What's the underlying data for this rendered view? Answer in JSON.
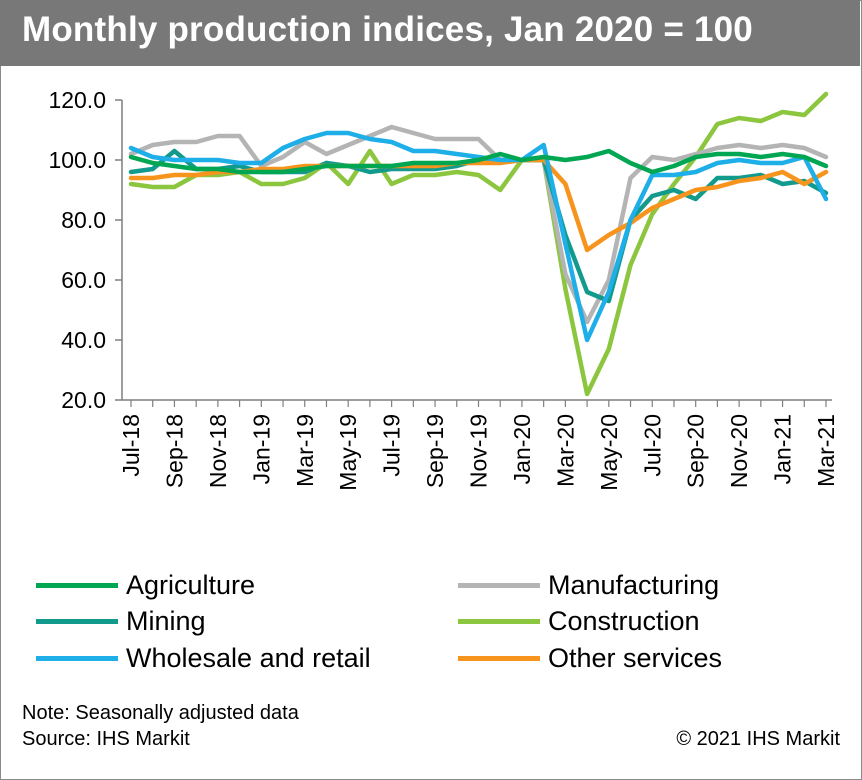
{
  "title": "Monthly production indices, Jan 2020 = 100",
  "footer": {
    "note": "Note: Seasonally adjusted data",
    "source": "Source: IHS Markit",
    "copyright": "© 2021 IHS Markit"
  },
  "chart_data": {
    "type": "line",
    "title": "Monthly production indices, Jan 2020 = 100",
    "xlabel": "",
    "ylabel": "",
    "ylim": [
      20,
      120
    ],
    "yticks": [
      "20.0",
      "40.0",
      "60.0",
      "80.0",
      "100.0",
      "120.0"
    ],
    "grid": false,
    "legend": "bottom",
    "x": [
      "Jul-18",
      "Aug-18",
      "Sep-18",
      "Oct-18",
      "Nov-18",
      "Dec-18",
      "Jan-19",
      "Feb-19",
      "Mar-19",
      "Apr-19",
      "May-19",
      "Jun-19",
      "Jul-19",
      "Aug-19",
      "Sep-19",
      "Oct-19",
      "Nov-19",
      "Dec-19",
      "Jan-20",
      "Feb-20",
      "Mar-20",
      "Apr-20",
      "May-20",
      "Jun-20",
      "Jul-20",
      "Aug-20",
      "Sep-20",
      "Oct-20",
      "Nov-20",
      "Dec-20",
      "Jan-21",
      "Feb-21",
      "Mar-21"
    ],
    "xtick_labels": [
      "Jul-18",
      "Sep-18",
      "Nov-18",
      "Jan-19",
      "Mar-19",
      "May-19",
      "Jul-19",
      "Sep-19",
      "Nov-19",
      "Jan-20",
      "Mar-20",
      "May-20",
      "Jul-20",
      "Sep-20",
      "Nov-20",
      "Jan-21",
      "Mar-21"
    ],
    "series": [
      {
        "name": "Agriculture",
        "color": "#00a651",
        "values": [
          101,
          99,
          98,
          97,
          97,
          96,
          96,
          96,
          97,
          98,
          98,
          98,
          98,
          99,
          99,
          99,
          100,
          102,
          100,
          101,
          100,
          101,
          103,
          99,
          96,
          98,
          101,
          102,
          102,
          101,
          102,
          101,
          98
        ]
      },
      {
        "name": "Manufacturing",
        "color": "#b4b4b4",
        "values": [
          102,
          105,
          106,
          106,
          108,
          108,
          98,
          101,
          106,
          102,
          105,
          108,
          111,
          109,
          107,
          107,
          107,
          100,
          100,
          100,
          62,
          46,
          60,
          94,
          101,
          100,
          102,
          104,
          105,
          104,
          105,
          104,
          101
        ]
      },
      {
        "name": "Mining",
        "color": "#129a8c",
        "values": [
          96,
          97,
          103,
          97,
          97,
          98,
          96,
          96,
          96,
          99,
          98,
          96,
          97,
          97,
          97,
          98,
          100,
          100,
          100,
          100,
          75,
          56,
          53,
          80,
          88,
          90,
          87,
          94,
          94,
          95,
          92,
          93,
          89
        ]
      },
      {
        "name": "Construction",
        "color": "#8cc63f",
        "values": [
          92,
          91,
          91,
          95,
          95,
          96,
          92,
          92,
          94,
          99,
          92,
          103,
          92,
          95,
          95,
          96,
          95,
          90,
          100,
          100,
          57,
          22,
          37,
          65,
          82,
          92,
          101,
          112,
          114,
          113,
          116,
          115,
          122
        ]
      },
      {
        "name": "Wholesale and retail",
        "color": "#1eaee8",
        "values": [
          104,
          101,
          100,
          100,
          100,
          99,
          99,
          104,
          107,
          109,
          109,
          107,
          106,
          103,
          103,
          102,
          101,
          100,
          100,
          105,
          72,
          40,
          56,
          80,
          95,
          95,
          96,
          99,
          100,
          99,
          99,
          101,
          87
        ]
      },
      {
        "name": "Other services",
        "color": "#f7941d",
        "values": [
          94,
          94,
          95,
          95,
          96,
          96,
          97,
          97,
          98,
          98,
          98,
          98,
          98,
          98,
          98,
          99,
          99,
          99,
          100,
          100,
          92,
          70,
          75,
          79,
          84,
          87,
          90,
          91,
          93,
          94,
          96,
          92,
          96
        ]
      }
    ]
  }
}
